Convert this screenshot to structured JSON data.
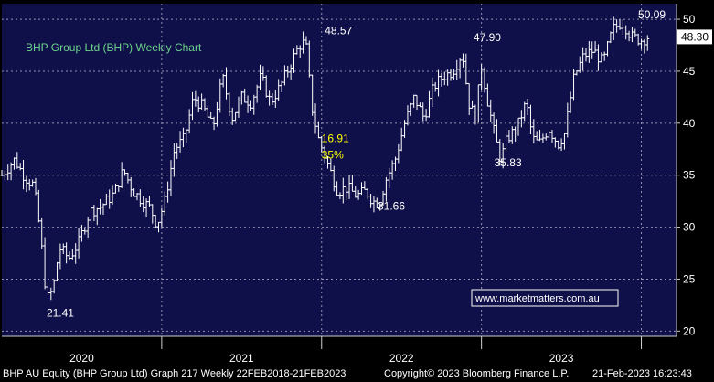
{
  "chart_data": {
    "type": "ohlc",
    "title": "BHP Group Ltd (BHP) Weekly Chart",
    "last_price": "48.30",
    "ylim": [
      19.5,
      51.5
    ],
    "yticks": [
      20,
      25,
      30,
      35,
      40,
      45,
      50
    ],
    "xticks": [
      {
        "label": "2020",
        "x": 2020.0
      },
      {
        "label": "2021",
        "x": 2021.0
      },
      {
        "label": "2022",
        "x": 2022.0
      },
      {
        "label": "2023",
        "x": 2023.0
      }
    ],
    "xlim": [
      2019.0,
      2023.22
    ],
    "grid": true,
    "series_color": "#ffffff",
    "background_color": "#0f0f4a",
    "title_color": "#6cd48a",
    "watermark": "www.marketmatters.com.au",
    "annotations": [
      {
        "text": "48.57",
        "x": 2021.02,
        "y": 48.57,
        "color": "#ffffff"
      },
      {
        "text": "47.90",
        "x": 2021.95,
        "y": 47.9,
        "color": "#ffffff"
      },
      {
        "text": "50.09",
        "x": 2022.98,
        "y": 50.09,
        "color": "#ffffff"
      },
      {
        "text": "16.91",
        "x": 2021.0,
        "y": 38.2,
        "color": "#ffff00"
      },
      {
        "text": "35%",
        "x": 2021.0,
        "y": 36.6,
        "color": "#ffff00"
      },
      {
        "text": "31.66",
        "x": 2021.35,
        "y": 31.66,
        "color": "#ffffff"
      },
      {
        "text": "35.83",
        "x": 2022.08,
        "y": 35.83,
        "color": "#ffffff"
      },
      {
        "text": "21.41",
        "x": 2019.28,
        "y": 21.41,
        "color": "#ffffff"
      }
    ],
    "weekly_close_path": [
      [
        2019.0,
        35.0
      ],
      [
        2019.08,
        36.5
      ],
      [
        2019.14,
        34.9
      ],
      [
        2019.2,
        34.0
      ],
      [
        2019.24,
        29.5
      ],
      [
        2019.28,
        23.0
      ],
      [
        2019.32,
        24.0
      ],
      [
        2019.36,
        28.0
      ],
      [
        2019.42,
        27.0
      ],
      [
        2019.48,
        28.5
      ],
      [
        2019.55,
        31.5
      ],
      [
        2019.62,
        32.0
      ],
      [
        2019.7,
        33.2
      ],
      [
        2019.76,
        35.5
      ],
      [
        2019.82,
        33.5
      ],
      [
        2019.88,
        32.5
      ],
      [
        2019.93,
        31.8
      ],
      [
        2019.97,
        30.2
      ],
      [
        2020.02,
        32.5
      ],
      [
        2020.08,
        37.5
      ],
      [
        2020.14,
        38.5
      ],
      [
        2020.2,
        42.5
      ],
      [
        2020.26,
        41.5
      ],
      [
        2020.32,
        39.5
      ],
      [
        2020.38,
        44.5
      ],
      [
        2020.44,
        40.5
      ],
      [
        2020.5,
        42.5
      ],
      [
        2020.56,
        42.0
      ],
      [
        2020.62,
        44.5
      ],
      [
        2020.68,
        42.0
      ],
      [
        2020.74,
        43.5
      ],
      [
        2020.8,
        45.5
      ],
      [
        2020.86,
        47.5
      ],
      [
        2020.9,
        47.8
      ],
      [
        2020.94,
        41.5
      ],
      [
        2020.98,
        38.5
      ],
      [
        2021.04,
        36.0
      ],
      [
        2021.1,
        33.5
      ],
      [
        2021.16,
        33.8
      ],
      [
        2021.22,
        33.0
      ],
      [
        2021.28,
        33.5
      ],
      [
        2021.32,
        32.5
      ],
      [
        2021.36,
        32.3
      ],
      [
        2021.4,
        34.5
      ],
      [
        2021.46,
        36.5
      ],
      [
        2021.52,
        40.0
      ],
      [
        2021.58,
        42.5
      ],
      [
        2021.64,
        40.5
      ],
      [
        2021.7,
        43.5
      ],
      [
        2021.76,
        44.5
      ],
      [
        2021.82,
        45.0
      ],
      [
        2021.88,
        46.8
      ],
      [
        2021.92,
        42.0
      ],
      [
        2021.96,
        40.5
      ],
      [
        2022.0,
        45.5
      ],
      [
        2022.04,
        42.0
      ],
      [
        2022.08,
        39.0
      ],
      [
        2022.12,
        36.5
      ],
      [
        2022.16,
        38.5
      ],
      [
        2022.22,
        39.5
      ],
      [
        2022.28,
        42.0
      ],
      [
        2022.32,
        38.5
      ],
      [
        2022.36,
        38.0
      ],
      [
        2022.42,
        39.5
      ],
      [
        2022.48,
        38.0
      ],
      [
        2022.52,
        39.0
      ],
      [
        2022.58,
        44.5
      ],
      [
        2022.64,
        46.5
      ],
      [
        2022.7,
        47.0
      ],
      [
        2022.76,
        45.8
      ],
      [
        2022.82,
        49.0
      ],
      [
        2022.88,
        49.8
      ],
      [
        2022.94,
        48.3
      ],
      [
        2023.0,
        48.0
      ],
      [
        2023.04,
        48.3
      ]
    ]
  },
  "footer": {
    "left": "BHP AU Equity (BHP Group Ltd) Graph 217  Weekly 22FEB2018-21FEB2023",
    "mid": "Copyright© 2023 Bloomberg Finance L.P.",
    "right": "21-Feb-2023 16:23:43"
  }
}
